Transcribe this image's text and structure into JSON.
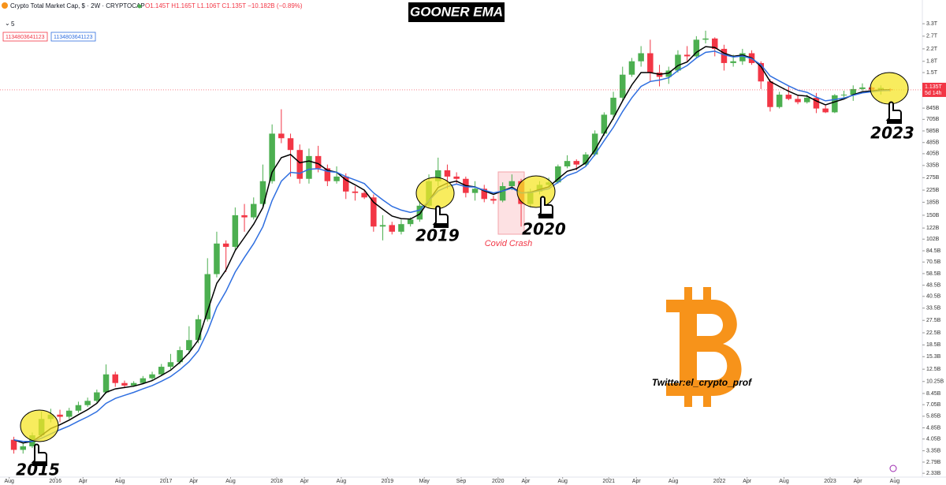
{
  "chart_data": {
    "type": "candlestick",
    "title": "GOONER EMA",
    "symbol": "Crypto Total Market Cap, $ · 2W · CRYPTOCAP",
    "ohlc_text": "O1.145T H1.165T L1.106T C1.135T −10.182B (−0.89%)",
    "indicator_count": "5",
    "indicator_values": [
      "1134803641123",
      "1134803641123"
    ],
    "last_price_label": "1.135T",
    "countdown": "5d 14h",
    "annotations": [
      "2015",
      "2019",
      "2020",
      "2023",
      "Covid Crash",
      "Twitter:el_crypto_prof"
    ],
    "log": true,
    "grid": false,
    "up_color": "#4caf50",
    "down_color": "#f23645",
    "x": [
      "2015-08",
      "2015-09",
      "2015-10",
      "2015-11",
      "2015-12",
      "2016-01",
      "2016-02",
      "2016-03",
      "2016-04",
      "2016-05",
      "2016-06",
      "2016-07",
      "2016-08",
      "2016-09",
      "2016-10",
      "2016-11",
      "2016-12",
      "2017-01",
      "2017-02",
      "2017-03",
      "2017-04",
      "2017-05",
      "2017-06",
      "2017-07",
      "2017-08",
      "2017-09",
      "2017-10",
      "2017-11",
      "2017-12",
      "2018-01",
      "2018-02",
      "2018-03",
      "2018-04",
      "2018-05",
      "2018-06",
      "2018-07",
      "2018-08",
      "2018-09",
      "2018-10",
      "2018-11",
      "2018-12",
      "2019-01",
      "2019-02",
      "2019-03",
      "2019-04",
      "2019-05",
      "2019-06",
      "2019-07",
      "2019-08",
      "2019-09",
      "2019-10",
      "2019-11",
      "2019-12",
      "2020-01",
      "2020-02",
      "2020-03",
      "2020-04",
      "2020-05",
      "2020-06",
      "2020-07",
      "2020-08",
      "2020-09",
      "2020-10",
      "2020-11",
      "2020-12",
      "2021-01",
      "2021-02",
      "2021-03",
      "2021-04",
      "2021-05",
      "2021-06",
      "2021-07",
      "2021-08",
      "2021-09",
      "2021-10",
      "2021-11",
      "2021-12",
      "2022-01",
      "2022-02",
      "2022-03",
      "2022-04",
      "2022-05",
      "2022-06",
      "2022-07",
      "2022-08",
      "2022-09",
      "2022-10",
      "2022-11",
      "2022-12",
      "2023-01",
      "2023-02",
      "2023-03",
      "2023-04",
      "2023-05",
      "2023-06",
      "2023-07"
    ],
    "open": [
      4.0,
      3.4,
      3.6,
      4.3,
      5.6,
      6.0,
      5.8,
      6.4,
      7.0,
      7.5,
      8.6,
      11.5,
      10.0,
      9.6,
      10.0,
      10.8,
      11.5,
      13,
      14,
      17,
      20,
      28,
      58,
      95,
      90,
      150,
      145,
      180,
      260,
      560,
      520,
      430,
      270,
      390,
      320,
      260,
      280,
      220,
      215,
      200,
      125,
      128,
      115,
      130,
      140,
      175,
      260,
      310,
      280,
      270,
      215,
      230,
      195,
      190,
      240,
      260,
      180,
      220,
      245,
      255,
      330,
      360,
      340,
      400,
      560,
      760,
      1000,
      1450,
      1800,
      2050,
      1500,
      1400,
      1550,
      2000,
      1950,
      2550,
      2600,
      2200,
      1750,
      1800,
      2050,
      1750,
      1300,
      860,
      1050,
      980,
      930,
      1000,
      840,
      790,
      1040,
      1050,
      1150,
      1180,
      1140,
      1145
    ],
    "high": [
      4.2,
      3.8,
      4.5,
      6.3,
      6.6,
      6.5,
      6.7,
      7.4,
      7.9,
      9.0,
      13.5,
      12.0,
      10.4,
      10.3,
      11.2,
      12.0,
      13.6,
      16,
      18,
      25,
      30,
      75,
      115,
      100,
      170,
      180,
      200,
      340,
      650,
      830,
      560,
      470,
      440,
      460,
      340,
      330,
      295,
      240,
      225,
      210,
      150,
      135,
      140,
      145,
      190,
      290,
      380,
      340,
      300,
      280,
      260,
      245,
      205,
      255,
      290,
      270,
      230,
      260,
      275,
      340,
      395,
      370,
      415,
      590,
      790,
      1100,
      1650,
      1900,
      2300,
      2550,
      1700,
      1650,
      2150,
      2300,
      2700,
      2950,
      2650,
      2350,
      2000,
      2200,
      2150,
      1800,
      1350,
      1100,
      1200,
      1050,
      1050,
      1080,
      880,
      1060,
      1120,
      1220,
      1260,
      1200,
      1220,
      1165
    ],
    "low": [
      3.2,
      3.2,
      3.5,
      4.2,
      5.3,
      5.3,
      5.6,
      6.2,
      6.8,
      7.3,
      8.4,
      9.4,
      9.2,
      9.4,
      9.8,
      10.5,
      11.3,
      12.5,
      13.5,
      16,
      19,
      27,
      55,
      60,
      85,
      115,
      140,
      170,
      250,
      480,
      280,
      250,
      250,
      300,
      240,
      250,
      195,
      190,
      195,
      115,
      100,
      110,
      110,
      125,
      135,
      170,
      240,
      230,
      250,
      200,
      190,
      185,
      180,
      185,
      225,
      125,
      170,
      210,
      240,
      250,
      320,
      310,
      330,
      390,
      540,
      700,
      950,
      1400,
      1650,
      1300,
      1200,
      1250,
      1500,
      1800,
      1900,
      2400,
      1950,
      1550,
      1650,
      1700,
      1700,
      1150,
      800,
      840,
      960,
      900,
      910,
      780,
      780,
      780,
      990,
      950,
      1120,
      1100,
      1050,
      1106
    ],
    "close": [
      3.4,
      3.6,
      4.3,
      5.6,
      6.0,
      5.8,
      6.4,
      7.0,
      7.5,
      8.6,
      11.5,
      10.0,
      9.6,
      10.0,
      10.8,
      11.5,
      13.0,
      14,
      17,
      20,
      28,
      58,
      95,
      90,
      150,
      145,
      180,
      260,
      560,
      520,
      430,
      270,
      390,
      320,
      260,
      280,
      220,
      215,
      200,
      125,
      128,
      115,
      130,
      140,
      175,
      260,
      310,
      280,
      270,
      215,
      230,
      195,
      190,
      240,
      260,
      180,
      220,
      245,
      255,
      330,
      360,
      340,
      400,
      560,
      760,
      1000,
      1450,
      1800,
      2050,
      1500,
      1400,
      1550,
      2000,
      1950,
      2550,
      2600,
      2200,
      1750,
      1800,
      2050,
      1750,
      1300,
      860,
      1050,
      980,
      930,
      1000,
      840,
      790,
      1040,
      1050,
      1150,
      1180,
      1140,
      1170,
      1135
    ],
    "series": [
      {
        "color": "#000000",
        "values": [
          4.0,
          3.8,
          3.9,
          4.3,
          4.8,
          5.1,
          5.5,
          6.0,
          6.5,
          7.2,
          8.6,
          9.1,
          9.3,
          9.5,
          9.9,
          10.4,
          11.3,
          12.3,
          14,
          16.3,
          20,
          32,
          50,
          62,
          85,
          105,
          130,
          170,
          300,
          380,
          400,
          350,
          360,
          345,
          310,
          300,
          265,
          245,
          225,
          185,
          165,
          148,
          142,
          141,
          153,
          190,
          235,
          252,
          260,
          242,
          237,
          222,
          210,
          222,
          236,
          215,
          217,
          227,
          237,
          270,
          305,
          318,
          350,
          430,
          560,
          720,
          950,
          1230,
          1500,
          1500,
          1460,
          1490,
          1680,
          1780,
          2080,
          2280,
          2250,
          2050,
          1950,
          1990,
          1900,
          1650,
          1300,
          1200,
          1110,
          1040,
          1025,
          950,
          890,
          935,
          980,
          1050,
          1100,
          1115,
          1135,
          1135
        ]
      },
      {
        "color": "#2f6fe0",
        "values": [
          4.0,
          3.9,
          3.9,
          4.1,
          4.4,
          4.7,
          5.0,
          5.4,
          5.8,
          6.3,
          7.2,
          7.8,
          8.2,
          8.6,
          9.1,
          9.6,
          10.3,
          11.1,
          12.4,
          14.1,
          16.8,
          23,
          34,
          44,
          60,
          76,
          95,
          125,
          190,
          260,
          300,
          295,
          315,
          318,
          305,
          300,
          280,
          265,
          250,
          215,
          192,
          173,
          163,
          157,
          163,
          190,
          222,
          238,
          248,
          238,
          236,
          225,
          215,
          222,
          232,
          215,
          216,
          223,
          230,
          255,
          285,
          300,
          330,
          400,
          500,
          620,
          800,
          1000,
          1200,
          1300,
          1330,
          1380,
          1550,
          1680,
          1900,
          2080,
          2120,
          2000,
          1930,
          1960,
          1880,
          1700,
          1420,
          1310,
          1210,
          1130,
          1090,
          1010,
          950,
          970,
          995,
          1040,
          1080,
          1100,
          1120,
          1125
        ]
      }
    ],
    "xlim": [
      "2015-07",
      "2023-11"
    ],
    "xticks": [
      {
        "value": "2015-08",
        "label": "Aug"
      },
      {
        "value": "2016-01",
        "label": "2016"
      },
      {
        "value": "2016-04",
        "label": "Apr"
      },
      {
        "value": "2016-08",
        "label": "Aug"
      },
      {
        "value": "2017-01",
        "label": "2017"
      },
      {
        "value": "2017-04",
        "label": "Apr"
      },
      {
        "value": "2017-08",
        "label": "Aug"
      },
      {
        "value": "2018-01",
        "label": "2018"
      },
      {
        "value": "2018-04",
        "label": "Apr"
      },
      {
        "value": "2018-08",
        "label": "Aug"
      },
      {
        "value": "2019-01",
        "label": "2019"
      },
      {
        "value": "2019-05",
        "label": "May"
      },
      {
        "value": "2019-09",
        "label": "Sep"
      },
      {
        "value": "2020-01",
        "label": "2020"
      },
      {
        "value": "2020-04",
        "label": "Apr"
      },
      {
        "value": "2020-08",
        "label": "Aug"
      },
      {
        "value": "2021-01",
        "label": "2021"
      },
      {
        "value": "2021-04",
        "label": "Apr"
      },
      {
        "value": "2021-08",
        "label": "Aug"
      },
      {
        "value": "2022-01",
        "label": "2022"
      },
      {
        "value": "2022-04",
        "label": "Apr"
      },
      {
        "value": "2022-08",
        "label": "Aug"
      },
      {
        "value": "2023-01",
        "label": "2023"
      },
      {
        "value": "2023-04",
        "label": "Apr"
      },
      {
        "value": "2023-08",
        "label": "Aug"
      }
    ],
    "ylim": [
      2.19,
      4840
    ],
    "yticks": [
      {
        "value": 3300,
        "label": "3.3T"
      },
      {
        "value": 2700,
        "label": "2.7T"
      },
      {
        "value": 2200,
        "label": "2.2T"
      },
      {
        "value": 1800,
        "label": "1.8T"
      },
      {
        "value": 1500,
        "label": "1.5T"
      },
      {
        "value": 845,
        "label": "845B"
      },
      {
        "value": 705,
        "label": "705B"
      },
      {
        "value": 585,
        "label": "585B"
      },
      {
        "value": 485,
        "label": "485B"
      },
      {
        "value": 405,
        "label": "405B"
      },
      {
        "value": 335,
        "label": "335B"
      },
      {
        "value": 275,
        "label": "275B"
      },
      {
        "value": 225,
        "label": "225B"
      },
      {
        "value": 185,
        "label": "185B"
      },
      {
        "value": 150,
        "label": "150B"
      },
      {
        "value": 122,
        "label": "122B"
      },
      {
        "value": 102,
        "label": "102B"
      },
      {
        "value": 84.5,
        "label": "84.5B"
      },
      {
        "value": 70.5,
        "label": "70.5B"
      },
      {
        "value": 58.5,
        "label": "58.5B"
      },
      {
        "value": 48.5,
        "label": "48.5B"
      },
      {
        "value": 40.5,
        "label": "40.5B"
      },
      {
        "value": 33.5,
        "label": "33.5B"
      },
      {
        "value": 27.5,
        "label": "27.5B"
      },
      {
        "value": 22.5,
        "label": "22.5B"
      },
      {
        "value": 18.5,
        "label": "18.5B"
      },
      {
        "value": 15.3,
        "label": "15.3B"
      },
      {
        "value": 12.5,
        "label": "12.5B"
      },
      {
        "value": 10.25,
        "label": "10.25B"
      },
      {
        "value": 8.45,
        "label": "8.45B"
      },
      {
        "value": 7.05,
        "label": "7.05B"
      },
      {
        "value": 5.85,
        "label": "5.85B"
      },
      {
        "value": 4.85,
        "label": "4.85B"
      },
      {
        "value": 4.05,
        "label": "4.05B"
      },
      {
        "value": 3.35,
        "label": "3.35B"
      },
      {
        "value": 2.79,
        "label": "2.79B"
      },
      {
        "value": 2.33,
        "label": "2.33B"
      }
    ]
  }
}
